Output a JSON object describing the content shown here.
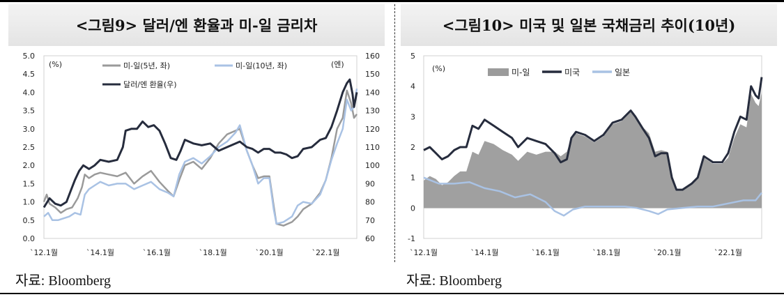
{
  "chart_data": [
    {
      "type": "line",
      "title": "<그림9> 달러/엔 환율과 미-일 금리차",
      "left_unit_label": "(%)",
      "right_unit_label": "(엔)",
      "ylim_left": [
        0.0,
        5.0
      ],
      "ylim_right": [
        60,
        160
      ],
      "y_ticks_left": [
        "0.0",
        "0.5",
        "1.0",
        "1.5",
        "2.0",
        "2.5",
        "3.0",
        "3.5",
        "4.0",
        "4.5",
        "5.0"
      ],
      "y_ticks_right": [
        "60",
        "70",
        "80",
        "90",
        "100",
        "110",
        "120",
        "130",
        "140",
        "150",
        "160"
      ],
      "x_ticks": [
        "`12.1월",
        "`14.1월",
        "`16.1월",
        "`18.1월",
        "`20.1월",
        "`22.1월"
      ],
      "x_tick_years": [
        2012,
        2014,
        2016,
        2018,
        2020,
        2022
      ],
      "xlim": [
        2012.0,
        2023.1
      ],
      "legend_position": "top",
      "colors": {
        "spread5y": "#9a9a9a",
        "spread10y": "#a9c2e4",
        "usdjpy": "#262c3d"
      },
      "series": [
        {
          "name": "미-일(5년, 좌)",
          "axis": "left",
          "color": "#9a9a9a",
          "x": [
            2012.0,
            2012.1,
            2012.2,
            2012.4,
            2012.6,
            2012.8,
            2013.0,
            2013.2,
            2013.35,
            2013.45,
            2013.6,
            2013.8,
            2014.0,
            2014.3,
            2014.6,
            2014.9,
            2015.2,
            2015.5,
            2015.8,
            2016.1,
            2016.4,
            2016.6,
            2016.8,
            2017.0,
            2017.3,
            2017.6,
            2017.9,
            2018.2,
            2018.5,
            2018.8,
            2018.95,
            2019.2,
            2019.4,
            2019.6,
            2019.8,
            2020.0,
            2020.15,
            2020.25,
            2020.5,
            2020.8,
            2021.0,
            2021.2,
            2021.5,
            2021.8,
            2022.0,
            2022.2,
            2022.4,
            2022.6,
            2022.75,
            2022.9,
            2023.0,
            2023.1
          ],
          "y": [
            1.0,
            1.2,
            0.95,
            0.85,
            0.7,
            0.8,
            0.85,
            1.1,
            1.4,
            1.75,
            1.65,
            1.75,
            1.8,
            1.75,
            1.7,
            1.8,
            1.5,
            1.7,
            1.85,
            1.55,
            1.3,
            1.15,
            1.6,
            2.0,
            2.1,
            1.9,
            2.2,
            2.6,
            2.85,
            2.95,
            3.0,
            2.4,
            2.0,
            1.65,
            1.7,
            1.7,
            0.9,
            0.4,
            0.35,
            0.45,
            0.6,
            0.8,
            0.95,
            1.25,
            1.6,
            2.2,
            3.0,
            3.3,
            4.05,
            3.7,
            3.3,
            3.4
          ]
        },
        {
          "name": "미-일(10년, 좌)",
          "axis": "left",
          "color": "#a9c2e4",
          "x": [
            2012.0,
            2012.15,
            2012.3,
            2012.5,
            2012.7,
            2012.9,
            2013.1,
            2013.3,
            2013.45,
            2013.6,
            2013.8,
            2014.0,
            2014.3,
            2014.6,
            2014.9,
            2015.2,
            2015.5,
            2015.8,
            2016.1,
            2016.4,
            2016.6,
            2016.8,
            2017.0,
            2017.3,
            2017.6,
            2017.9,
            2018.2,
            2018.5,
            2018.8,
            2018.95,
            2019.2,
            2019.4,
            2019.6,
            2019.8,
            2020.0,
            2020.15,
            2020.25,
            2020.5,
            2020.8,
            2021.0,
            2021.2,
            2021.5,
            2021.8,
            2022.0,
            2022.2,
            2022.4,
            2022.6,
            2022.75,
            2022.9,
            2023.0,
            2023.1
          ],
          "y": [
            0.6,
            0.7,
            0.5,
            0.5,
            0.55,
            0.6,
            0.7,
            0.65,
            1.2,
            1.35,
            1.45,
            1.55,
            1.45,
            1.5,
            1.5,
            1.35,
            1.45,
            1.55,
            1.35,
            1.25,
            1.15,
            1.75,
            2.1,
            2.2,
            2.05,
            2.25,
            2.5,
            2.65,
            2.9,
            3.1,
            2.4,
            2.0,
            1.5,
            1.65,
            1.65,
            0.8,
            0.4,
            0.45,
            0.6,
            0.9,
            1.0,
            0.95,
            1.2,
            1.6,
            2.15,
            2.6,
            3.0,
            3.8,
            3.5,
            3.6,
            4.1
          ]
        },
        {
          "name": "달러/엔 환율(우)",
          "axis": "right",
          "color": "#262c3d",
          "x": [
            2012.0,
            2012.2,
            2012.4,
            2012.6,
            2012.8,
            2012.95,
            2013.1,
            2013.25,
            2013.4,
            2013.6,
            2013.8,
            2014.0,
            2014.3,
            2014.6,
            2014.8,
            2014.9,
            2015.1,
            2015.3,
            2015.5,
            2015.7,
            2015.9,
            2016.1,
            2016.3,
            2016.5,
            2016.7,
            2016.85,
            2017.0,
            2017.3,
            2017.6,
            2017.9,
            2018.2,
            2018.5,
            2018.8,
            2018.95,
            2019.2,
            2019.4,
            2019.6,
            2019.8,
            2020.0,
            2020.2,
            2020.4,
            2020.6,
            2020.8,
            2021.0,
            2021.2,
            2021.5,
            2021.8,
            2022.0,
            2022.2,
            2022.4,
            2022.6,
            2022.75,
            2022.85,
            2022.95,
            2023.0,
            2023.1
          ],
          "y": [
            77,
            82,
            79,
            78,
            80,
            86,
            92,
            97,
            100,
            98,
            100,
            103,
            102,
            103,
            110,
            119,
            120,
            120,
            124,
            121,
            122,
            119,
            112,
            104,
            103,
            108,
            114,
            112,
            111,
            112,
            108,
            110,
            112,
            113,
            110,
            109,
            107,
            109,
            109,
            107,
            107,
            106,
            104,
            105,
            109,
            110,
            114,
            115,
            121,
            130,
            140,
            145,
            147,
            139,
            132,
            140
          ]
        }
      ]
    },
    {
      "type": "area",
      "title": "<그림10> 미국 및 일본 국채금리 추이(10년)",
      "y_unit_label": "(%)",
      "ylim": [
        -1,
        5
      ],
      "y_ticks": [
        "-1",
        "0",
        "1",
        "2",
        "3",
        "4",
        "5"
      ],
      "x_ticks": [
        "`12.1월",
        "`14.1월",
        "`16.1월",
        "`18.1월",
        "`20.1월",
        "`22.1월"
      ],
      "x_tick_years": [
        2012,
        2014,
        2016,
        2018,
        2020,
        2022
      ],
      "xlim": [
        2012.0,
        2023.1
      ],
      "legend_position": "top",
      "colors": {
        "spread": "#9b9b9b",
        "us": "#262c3d",
        "japan": "#a9c2e4"
      },
      "series": [
        {
          "name": "미국",
          "color": "#262c3d",
          "x": [
            2012.0,
            2012.2,
            2012.4,
            2012.6,
            2012.8,
            2013.0,
            2013.2,
            2013.4,
            2013.6,
            2013.8,
            2014.0,
            2014.3,
            2014.6,
            2014.9,
            2015.1,
            2015.4,
            2015.7,
            2016.0,
            2016.3,
            2016.5,
            2016.7,
            2016.85,
            2017.0,
            2017.3,
            2017.6,
            2017.9,
            2018.2,
            2018.5,
            2018.8,
            2018.95,
            2019.2,
            2019.4,
            2019.6,
            2019.8,
            2020.0,
            2020.15,
            2020.3,
            2020.5,
            2020.8,
            2021.0,
            2021.2,
            2021.5,
            2021.8,
            2022.0,
            2022.2,
            2022.4,
            2022.6,
            2022.75,
            2022.9,
            2023.0,
            2023.1
          ],
          "y": [
            1.9,
            2.0,
            1.8,
            1.6,
            1.7,
            1.9,
            2.0,
            2.0,
            2.7,
            2.6,
            2.9,
            2.7,
            2.5,
            2.3,
            2.0,
            2.3,
            2.2,
            2.1,
            1.8,
            1.5,
            1.6,
            2.3,
            2.5,
            2.4,
            2.2,
            2.4,
            2.8,
            2.9,
            3.2,
            3.0,
            2.6,
            2.3,
            1.7,
            1.8,
            1.8,
            1.0,
            0.6,
            0.6,
            0.8,
            1.0,
            1.7,
            1.5,
            1.5,
            1.8,
            2.5,
            3.0,
            2.9,
            4.0,
            3.7,
            3.6,
            4.3
          ]
        },
        {
          "name": "일본",
          "color": "#a9c2e4",
          "x": [
            2012.0,
            2012.5,
            2013.0,
            2013.5,
            2014.0,
            2014.5,
            2015.0,
            2015.5,
            2016.0,
            2016.3,
            2016.6,
            2016.9,
            2017.3,
            2017.8,
            2018.2,
            2018.6,
            2019.0,
            2019.4,
            2019.7,
            2020.0,
            2020.5,
            2021.0,
            2021.5,
            2022.0,
            2022.5,
            2022.9,
            2023.1
          ],
          "y": [
            1.0,
            0.8,
            0.8,
            0.85,
            0.65,
            0.55,
            0.35,
            0.45,
            0.2,
            -0.1,
            -0.25,
            -0.05,
            0.05,
            0.05,
            0.05,
            0.05,
            0.0,
            -0.1,
            -0.2,
            -0.05,
            0.0,
            0.05,
            0.05,
            0.15,
            0.25,
            0.25,
            0.5
          ]
        },
        {
          "name": "미-일",
          "color": "#9b9b9b",
          "x": [
            2012.0,
            2012.2,
            2012.4,
            2012.6,
            2012.8,
            2013.0,
            2013.2,
            2013.4,
            2013.6,
            2013.8,
            2014.0,
            2014.3,
            2014.6,
            2014.9,
            2015.1,
            2015.4,
            2015.7,
            2016.0,
            2016.3,
            2016.5,
            2016.7,
            2016.85,
            2017.0,
            2017.3,
            2017.6,
            2017.9,
            2018.2,
            2018.5,
            2018.8,
            2018.95,
            2019.2,
            2019.4,
            2019.6,
            2019.8,
            2020.0,
            2020.15,
            2020.3,
            2020.5,
            2020.8,
            2021.0,
            2021.2,
            2021.5,
            2021.8,
            2022.0,
            2022.2,
            2022.4,
            2022.6,
            2022.75,
            2022.9,
            2023.0,
            2023.1
          ],
          "y": [
            0.9,
            1.05,
            0.95,
            0.75,
            0.85,
            1.05,
            1.2,
            1.2,
            1.85,
            1.75,
            2.2,
            2.1,
            1.9,
            1.75,
            1.55,
            1.85,
            1.75,
            1.85,
            1.85,
            1.7,
            1.85,
            2.3,
            2.45,
            2.35,
            2.15,
            2.35,
            2.75,
            2.85,
            3.15,
            2.95,
            2.65,
            2.45,
            1.85,
            1.9,
            1.85,
            1.05,
            0.6,
            0.6,
            0.8,
            0.95,
            1.65,
            1.45,
            1.45,
            1.65,
            2.3,
            2.75,
            2.65,
            3.75,
            3.45,
            3.35,
            3.8
          ]
        }
      ]
    }
  ],
  "source_left": "자료: Bloomberg",
  "source_right": "자료: Bloomberg"
}
